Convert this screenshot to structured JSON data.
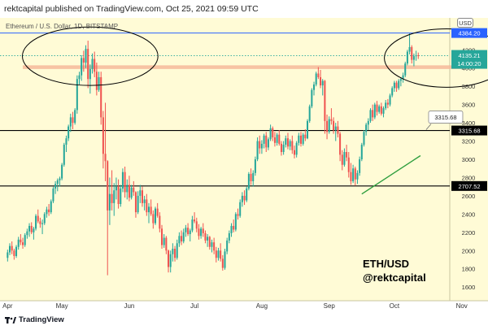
{
  "header": {
    "publish_line": "rektcapital published on TradingView.com, Oct 25, 2021 09:59 UTC"
  },
  "chart": {
    "symbol_title": "Ethereum / U.S. Dollar, 1D, BITSTAMP",
    "currency": "USD",
    "watermark_line1": "ETH/USD",
    "watermark_line2": "@rektcapital"
  },
  "footer": {
    "brand": "TradingView"
  },
  "colors": {
    "background": "#fffbd6",
    "up_candle": "#26a69a",
    "down_candle": "#ef5350",
    "resistance_band": "#f6b89a",
    "blue_line": "#2962ff",
    "support_line": "#000000",
    "trendline": "#2e9e3e",
    "price_badge": "#26a69a"
  },
  "chart_data": {
    "type": "candlestick",
    "title": "Ethereum / U.S. Dollar, 1D, BITSTAMP",
    "ylim": [
      1450,
      4550
    ],
    "y_ticks": [
      1600,
      1800,
      2000,
      2200,
      2400,
      2600,
      2800,
      3000,
      3200,
      3400,
      3600,
      3800,
      4000,
      4200
    ],
    "x_ticks": [
      {
        "label": "Apr",
        "index": 0
      },
      {
        "label": "May",
        "index": 25
      },
      {
        "label": "Jun",
        "index": 56
      },
      {
        "label": "Jul",
        "index": 86
      },
      {
        "label": "Aug",
        "index": 117
      },
      {
        "label": "Sep",
        "index": 148
      },
      {
        "label": "Oct",
        "index": 178
      },
      {
        "label": "Nov",
        "index": 209
      }
    ],
    "horizontal_levels": [
      {
        "value": 4384.2,
        "label": "4384.20",
        "style": "blue"
      },
      {
        "value": 3315.68,
        "label": "3315.68",
        "style": "support"
      },
      {
        "value": 2707.52,
        "label": "2707.52",
        "style": "support"
      }
    ],
    "resistance_band": {
      "from": 3990,
      "to": 4030
    },
    "current_price": {
      "value": 4135.21,
      "label": "4135.21",
      "countdown": "14:00:20"
    },
    "callout": {
      "label": "3315.68",
      "index": 196,
      "value": 3315.68
    },
    "trendline": [
      {
        "index": 163,
        "value": 2620
      },
      {
        "index": 190,
        "value": 3040
      }
    ],
    "circles": [
      {
        "index": 38,
        "value": 4130,
        "rx_bars": 12,
        "ry_value": 320
      },
      {
        "index": 202,
        "value": 4110,
        "rx_bars": 11,
        "ry_value": 320
      }
    ],
    "ohlc": [
      [
        1920,
        2010,
        1880,
        1980
      ],
      [
        1980,
        2080,
        1950,
        2050
      ],
      [
        2050,
        2100,
        1960,
        2000
      ],
      [
        2000,
        2020,
        1900,
        1940
      ],
      [
        1940,
        2060,
        1920,
        2040
      ],
      [
        2040,
        2150,
        2010,
        2120
      ],
      [
        2120,
        2180,
        2060,
        2090
      ],
      [
        2090,
        2140,
        2020,
        2060
      ],
      [
        2060,
        2190,
        2040,
        2170
      ],
      [
        2170,
        2240,
        2130,
        2210
      ],
      [
        2210,
        2300,
        2150,
        2270
      ],
      [
        2270,
        2310,
        2180,
        2200
      ],
      [
        2200,
        2260,
        2120,
        2240
      ],
      [
        2240,
        2400,
        2220,
        2380
      ],
      [
        2380,
        2450,
        2300,
        2320
      ],
      [
        2320,
        2360,
        2250,
        2290
      ],
      [
        2290,
        2340,
        2180,
        2300
      ],
      [
        2300,
        2420,
        2280,
        2400
      ],
      [
        2400,
        2480,
        2360,
        2450
      ],
      [
        2450,
        2510,
        2380,
        2420
      ],
      [
        2420,
        2560,
        2400,
        2540
      ],
      [
        2540,
        2700,
        2520,
        2680
      ],
      [
        2680,
        2760,
        2620,
        2730
      ],
      [
        2730,
        2790,
        2650,
        2770
      ],
      [
        2770,
        2810,
        2700,
        2790
      ],
      [
        2790,
        2960,
        2770,
        2940
      ],
      [
        2940,
        3180,
        2920,
        3160
      ],
      [
        3160,
        3260,
        3080,
        3230
      ],
      [
        3230,
        3380,
        3200,
        3360
      ],
      [
        3360,
        3500,
        3300,
        3460
      ],
      [
        3460,
        3520,
        3330,
        3400
      ],
      [
        3400,
        3560,
        3380,
        3540
      ],
      [
        3540,
        3920,
        3500,
        3880
      ],
      [
        3880,
        3960,
        3820,
        3920
      ],
      [
        3920,
        4140,
        3860,
        4110
      ],
      [
        4110,
        4190,
        3960,
        4060
      ],
      [
        4060,
        4250,
        4000,
        4210
      ],
      [
        4210,
        4300,
        3780,
        3880
      ],
      [
        3880,
        4040,
        3720,
        3990
      ],
      [
        3990,
        4160,
        3940,
        4100
      ],
      [
        4100,
        4180,
        3900,
        3960
      ],
      [
        3960,
        4060,
        3700,
        3760
      ],
      [
        3760,
        3960,
        3740,
        3900
      ],
      [
        3900,
        3960,
        3380,
        3460
      ],
      [
        3460,
        3530,
        2900,
        3060
      ],
      [
        3060,
        3620,
        2760,
        2980
      ],
      [
        2980,
        2990,
        1730,
        2440
      ],
      [
        2440,
        2800,
        2280,
        2620
      ],
      [
        2620,
        2880,
        2440,
        2520
      ],
      [
        2520,
        2740,
        2380,
        2660
      ],
      [
        2660,
        2800,
        2560,
        2700
      ],
      [
        2700,
        2780,
        2460,
        2510
      ],
      [
        2510,
        2720,
        2480,
        2680
      ],
      [
        2680,
        2900,
        2640,
        2860
      ],
      [
        2860,
        2920,
        2580,
        2640
      ],
      [
        2640,
        2780,
        2560,
        2720
      ],
      [
        2720,
        2820,
        2540,
        2580
      ],
      [
        2580,
        2720,
        2560,
        2690
      ],
      [
        2690,
        2760,
        2600,
        2640
      ],
      [
        2640,
        2650,
        2360,
        2420
      ],
      [
        2420,
        2650,
        2400,
        2600
      ],
      [
        2600,
        2720,
        2520,
        2660
      ],
      [
        2660,
        2700,
        2480,
        2520
      ],
      [
        2520,
        2600,
        2440,
        2560
      ],
      [
        2560,
        2620,
        2380,
        2420
      ],
      [
        2420,
        2520,
        2300,
        2480
      ],
      [
        2480,
        2560,
        2380,
        2400
      ],
      [
        2400,
        2440,
        2240,
        2300
      ],
      [
        2300,
        2480,
        2280,
        2460
      ],
      [
        2460,
        2520,
        2360,
        2380
      ],
      [
        2380,
        2420,
        2200,
        2240
      ],
      [
        2240,
        2280,
        2020,
        2060
      ],
      [
        2060,
        2180,
        2030,
        2140
      ],
      [
        2140,
        2160,
        1960,
        2000
      ],
      [
        2000,
        2010,
        1760,
        1820
      ],
      [
        1820,
        2000,
        1760,
        1960
      ],
      [
        1960,
        2080,
        1880,
        2020
      ],
      [
        2020,
        2050,
        1880,
        1920
      ],
      [
        1920,
        2120,
        1900,
        2080
      ],
      [
        2080,
        2200,
        2040,
        2160
      ],
      [
        2160,
        2220,
        2060,
        2100
      ],
      [
        2100,
        2240,
        2080,
        2200
      ],
      [
        2200,
        2280,
        2150,
        2250
      ],
      [
        2250,
        2300,
        2160,
        2180
      ],
      [
        2180,
        2240,
        2100,
        2220
      ],
      [
        2220,
        2380,
        2200,
        2340
      ],
      [
        2340,
        2420,
        2300,
        2320
      ],
      [
        2320,
        2360,
        2200,
        2240
      ],
      [
        2240,
        2290,
        2120,
        2160
      ],
      [
        2160,
        2260,
        2130,
        2240
      ],
      [
        2240,
        2300,
        2150,
        2190
      ],
      [
        2190,
        2220,
        2080,
        2110
      ],
      [
        2110,
        2180,
        2040,
        2150
      ],
      [
        2150,
        2160,
        2010,
        2040
      ],
      [
        2040,
        2120,
        1980,
        2090
      ],
      [
        2090,
        2140,
        1960,
        2000
      ],
      [
        2000,
        2040,
        1870,
        1920
      ],
      [
        1920,
        2030,
        1890,
        2000
      ],
      [
        2000,
        2080,
        1880,
        1910
      ],
      [
        1910,
        1950,
        1780,
        1810
      ],
      [
        1810,
        2020,
        1790,
        1990
      ],
      [
        1990,
        2140,
        1960,
        2110
      ],
      [
        2110,
        2220,
        2080,
        2190
      ],
      [
        2190,
        2300,
        2150,
        2270
      ],
      [
        2270,
        2340,
        2200,
        2230
      ],
      [
        2230,
        2420,
        2210,
        2400
      ],
      [
        2400,
        2460,
        2340,
        2380
      ],
      [
        2380,
        2560,
        2360,
        2530
      ],
      [
        2530,
        2640,
        2480,
        2600
      ],
      [
        2600,
        2660,
        2500,
        2550
      ],
      [
        2550,
        2700,
        2530,
        2680
      ],
      [
        2680,
        2860,
        2660,
        2840
      ],
      [
        2840,
        2900,
        2720,
        2760
      ],
      [
        2760,
        2880,
        2700,
        2850
      ],
      [
        2850,
        3030,
        2820,
        3000
      ],
      [
        3000,
        3240,
        2980,
        3200
      ],
      [
        3200,
        3260,
        3060,
        3120
      ],
      [
        3120,
        3210,
        3060,
        3170
      ],
      [
        3170,
        3280,
        3120,
        3260
      ],
      [
        3260,
        3300,
        3080,
        3130
      ],
      [
        3130,
        3240,
        3100,
        3220
      ],
      [
        3220,
        3380,
        3200,
        3340
      ],
      [
        3340,
        3360,
        3200,
        3240
      ],
      [
        3240,
        3300,
        3140,
        3180
      ],
      [
        3180,
        3290,
        3150,
        3270
      ],
      [
        3270,
        3320,
        3150,
        3170
      ],
      [
        3170,
        3200,
        3040,
        3080
      ],
      [
        3080,
        3200,
        3050,
        3160
      ],
      [
        3160,
        3260,
        3130,
        3230
      ],
      [
        3230,
        3290,
        3110,
        3140
      ],
      [
        3140,
        3220,
        3100,
        3200
      ],
      [
        3200,
        3260,
        3060,
        3100
      ],
      [
        3100,
        3150,
        3010,
        3050
      ],
      [
        3050,
        3200,
        3020,
        3180
      ],
      [
        3180,
        3290,
        3150,
        3260
      ],
      [
        3260,
        3300,
        3140,
        3170
      ],
      [
        3170,
        3290,
        3150,
        3270
      ],
      [
        3270,
        3330,
        3200,
        3230
      ],
      [
        3230,
        3440,
        3220,
        3420
      ],
      [
        3420,
        3600,
        3400,
        3580
      ],
      [
        3580,
        3780,
        3560,
        3760
      ],
      [
        3760,
        3850,
        3700,
        3820
      ],
      [
        3820,
        3960,
        3800,
        3940
      ],
      [
        3940,
        4010,
        3880,
        3900
      ],
      [
        3900,
        3980,
        3780,
        3810
      ],
      [
        3810,
        3880,
        3700,
        3860
      ],
      [
        3860,
        3870,
        3280,
        3420
      ],
      [
        3420,
        3490,
        3220,
        3300
      ],
      [
        3300,
        3470,
        3280,
        3440
      ],
      [
        3440,
        3560,
        3380,
        3420
      ],
      [
        3420,
        3460,
        3280,
        3320
      ],
      [
        3320,
        3400,
        3200,
        3360
      ],
      [
        3360,
        3420,
        3240,
        3280
      ],
      [
        3280,
        3300,
        2980,
        3050
      ],
      [
        3050,
        3100,
        2880,
        2940
      ],
      [
        2940,
        3120,
        2920,
        3080
      ],
      [
        3080,
        3160,
        2980,
        3020
      ],
      [
        3020,
        3080,
        2800,
        2860
      ],
      [
        2860,
        2960,
        2720,
        2760
      ],
      [
        2760,
        2940,
        2740,
        2900
      ],
      [
        2900,
        2920,
        2710,
        2780
      ],
      [
        2780,
        2880,
        2730,
        2850
      ],
      [
        2850,
        3030,
        2820,
        3000
      ],
      [
        3000,
        3180,
        2980,
        3160
      ],
      [
        3160,
        3320,
        3140,
        3300
      ],
      [
        3300,
        3400,
        3260,
        3380
      ],
      [
        3380,
        3450,
        3320,
        3420
      ],
      [
        3420,
        3560,
        3400,
        3540
      ],
      [
        3540,
        3600,
        3420,
        3460
      ],
      [
        3460,
        3620,
        3440,
        3600
      ],
      [
        3600,
        3640,
        3480,
        3520
      ],
      [
        3520,
        3600,
        3500,
        3580
      ],
      [
        3580,
        3620,
        3480,
        3500
      ],
      [
        3500,
        3580,
        3460,
        3560
      ],
      [
        3560,
        3650,
        3540,
        3620
      ],
      [
        3620,
        3660,
        3560,
        3600
      ],
      [
        3600,
        3720,
        3580,
        3700
      ],
      [
        3700,
        3800,
        3680,
        3780
      ],
      [
        3780,
        3860,
        3740,
        3840
      ],
      [
        3840,
        3860,
        3740,
        3780
      ],
      [
        3780,
        3880,
        3760,
        3860
      ],
      [
        3860,
        3900,
        3800,
        3880
      ],
      [
        3880,
        3950,
        3840,
        3920
      ],
      [
        3920,
        4070,
        3900,
        4050
      ],
      [
        4050,
        4200,
        4030,
        4180
      ],
      [
        4180,
        4380,
        4150,
        4230
      ],
      [
        4230,
        4250,
        4050,
        4090
      ],
      [
        4090,
        4160,
        4020,
        4130
      ],
      [
        4130,
        4190,
        4080,
        4140
      ],
      [
        4140,
        4170,
        4100,
        4135.21
      ]
    ]
  }
}
